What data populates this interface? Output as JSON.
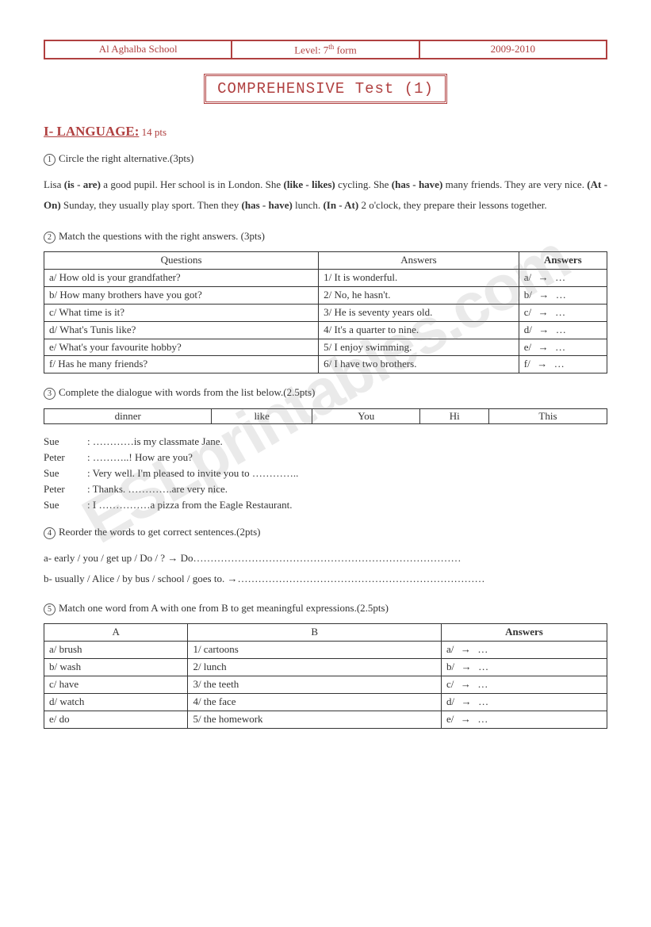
{
  "watermark": "ESLprintables.com",
  "header": {
    "school": "Al Aghalba School",
    "level_label": "Level: ",
    "level_value_pre": "7",
    "level_value_sup": "th",
    "level_value_post": " form",
    "year": "2009-2010"
  },
  "title": "COMPREHENSIVE Test (1)",
  "section1": {
    "heading": "I- LANGUAGE:",
    "points": " 14 pts"
  },
  "q1": {
    "num": "1",
    "text": "Circle the right alternative.(3pts)",
    "passage": "Lisa <b>(is - are)</b> a good pupil. Her school is in London. She <b>(like - likes)</b> cycling. She <b>(has - have)</b> many friends. They are very nice. <b>(At - On)</b> Sunday, they usually play sport. Then they <b>(has - have)</b> lunch. <b>(In - At)</b> 2 o'clock, they prepare their lessons together."
  },
  "q2": {
    "num": "2",
    "text": "Match the questions with the right answers. (3pts)",
    "cols": [
      "Questions",
      "Answers",
      "Answers"
    ],
    "questions": [
      "a/ How old is your grandfather?",
      "b/ How many brothers have you got?",
      "c/ What time is it?",
      "d/ What's Tunis like?",
      "e/ What's your favourite hobby?",
      "f/ Has he many friends?"
    ],
    "answers": [
      "1/ It is wonderful.",
      "2/ No, he hasn't.",
      "3/ He is seventy years old.",
      "4/ It's a quarter to nine.",
      "5/ I enjoy swimming.",
      "6/ I have two brothers."
    ],
    "keys": [
      "a/",
      "b/",
      "c/",
      "d/",
      "e/",
      "f/"
    ]
  },
  "q3": {
    "num": "3",
    "text": "Complete the dialogue with words from the list below.(2.5pts)",
    "words": [
      "dinner",
      "like",
      "You",
      "Hi",
      "This"
    ],
    "dialogue": [
      {
        "name": "Sue",
        "line": ": …………is my classmate Jane."
      },
      {
        "name": "Peter",
        "line": ": ………..! How are you?"
      },
      {
        "name": "Sue",
        "line": ": Very well. I'm pleased to invite you to ………….."
      },
      {
        "name": "Peter",
        "line": ": Thanks. ………….are very nice."
      },
      {
        "name": "Sue",
        "line": ": I ……………a pizza from the Eagle Restaurant."
      }
    ]
  },
  "q4": {
    "num": "4",
    "text": "Reorder the words to get correct sentences.(2pts)",
    "items": [
      "a- early / you / get up / Do / ?  → Do……………………………………………………………………",
      "b- usually / Alice / by bus /  school / goes to. →………………………………………………………………"
    ]
  },
  "q5": {
    "num": "5",
    "text": "Match one word from A with one from B to get meaningful expressions.(2.5pts)",
    "cols": [
      "A",
      "B",
      "Answers"
    ],
    "colA": [
      "a/ brush",
      "b/ wash",
      "c/ have",
      "d/ watch",
      "e/ do"
    ],
    "colB": [
      "1/ cartoons",
      "2/ lunch",
      "3/ the teeth",
      "4/ the face",
      "5/ the homework"
    ],
    "keys": [
      "a/",
      "b/",
      "c/",
      "d/",
      "e/"
    ]
  },
  "arrow": "→",
  "dots": "…"
}
